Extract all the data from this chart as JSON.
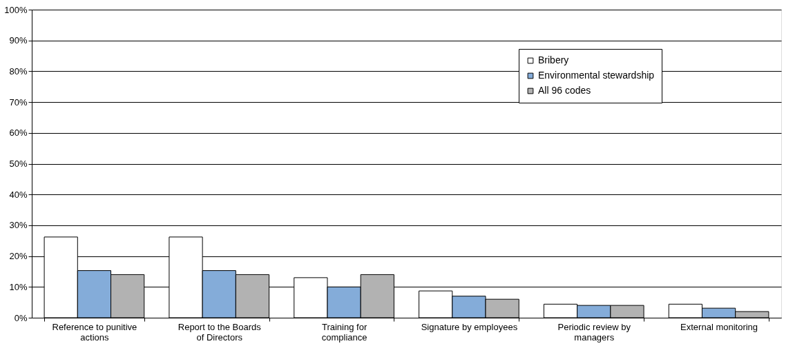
{
  "chart_data": {
    "type": "bar",
    "categories": [
      "Reference to punitive actions",
      "Report to the Boards of Directors",
      "Training for compliance",
      "Signature by employees",
      "Periodic review by managers",
      "External monitoring"
    ],
    "series": [
      {
        "name": "Bribery",
        "color": "#ffffff",
        "values": [
          26.2,
          26.2,
          13,
          8.7,
          4.4,
          4.4
        ]
      },
      {
        "name": "Environmental stewardship",
        "color": "#84acd9",
        "values": [
          15.3,
          15.3,
          10,
          7,
          4,
          3.1
        ]
      },
      {
        "name": "All 96 codes",
        "color": "#b2b2b2",
        "values": [
          14,
          14,
          14,
          6,
          4,
          2
        ]
      }
    ],
    "ylim": [
      0,
      100
    ],
    "yticks": [
      {
        "value": 0,
        "label": "0%"
      },
      {
        "value": 10,
        "label": "10%"
      },
      {
        "value": 20,
        "label": "20%"
      },
      {
        "value": 30,
        "label": "30%"
      },
      {
        "value": 40,
        "label": "40%"
      },
      {
        "value": 50,
        "label": "50%"
      },
      {
        "value": 60,
        "label": "60%"
      },
      {
        "value": 70,
        "label": "70%"
      },
      {
        "value": 80,
        "label": "80%"
      },
      {
        "value": 90,
        "label": "90%"
      },
      {
        "value": 100,
        "label": "100%"
      }
    ],
    "grid": "y",
    "legend": "top right"
  }
}
